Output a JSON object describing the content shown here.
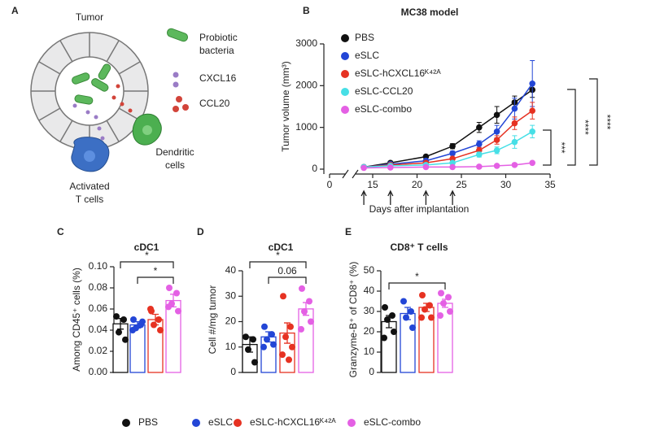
{
  "panels": [
    "A",
    "B",
    "C",
    "D",
    "E"
  ],
  "diagram": {
    "title": "Tumor",
    "legend": [
      [
        "Probiotic",
        "bacteria"
      ],
      [
        "CXCL16"
      ],
      [
        "CCL20"
      ]
    ],
    "cells": [
      [
        "Activated",
        "T cells"
      ],
      [
        "Dendritic",
        "cells"
      ]
    ]
  },
  "legend": {
    "series": [
      {
        "name": "PBS",
        "color": "#111111"
      },
      {
        "name": "eSLC",
        "color": "#2346d6"
      },
      {
        "name": "eSLC-hCXCL16ᴷ⁴²ᴬ",
        "color": "#e63222"
      },
      {
        "name": "eSLC-combo",
        "color": "#e460e4"
      }
    ]
  },
  "chart_data": [
    {
      "type": "line",
      "title": "MC38 model",
      "xlabel": "Days after implantation",
      "ylabel": "Tumor volume (mm³)",
      "x": [
        14,
        17,
        21,
        24,
        27,
        29,
        31,
        33
      ],
      "xlim": [
        0,
        35
      ],
      "xticks": [
        0,
        15,
        20,
        25,
        30,
        35
      ],
      "axis_break": [
        2,
        13
      ],
      "ylim": [
        0,
        3000
      ],
      "yticks": [
        0,
        1000,
        2000,
        3000
      ],
      "treatment_days": [
        14,
        17,
        21,
        24
      ],
      "series": [
        {
          "name": "PBS",
          "color": "#111111",
          "values": [
            50,
            150,
            300,
            550,
            1000,
            1300,
            1600,
            1900
          ],
          "errors": [
            10,
            20,
            30,
            60,
            120,
            200,
            150,
            180
          ]
        },
        {
          "name": "eSLC",
          "color": "#2346d6",
          "values": [
            50,
            120,
            200,
            380,
            600,
            900,
            1450,
            2050
          ],
          "errors": [
            10,
            15,
            30,
            50,
            80,
            150,
            250,
            550
          ]
        },
        {
          "name": "eSLC-hCXCL16ᴷ⁴²ᴬ",
          "color": "#e63222",
          "values": [
            50,
            100,
            150,
            250,
            450,
            700,
            1100,
            1400
          ],
          "errors": [
            10,
            15,
            25,
            40,
            70,
            100,
            150,
            200
          ]
        },
        {
          "name": "eSLC-CCL20",
          "color": "#47dfe6",
          "values": [
            50,
            80,
            100,
            150,
            350,
            450,
            650,
            900
          ],
          "errors": [
            10,
            10,
            20,
            30,
            60,
            80,
            150,
            150
          ]
        },
        {
          "name": "eSLC-combo",
          "color": "#e460e4",
          "values": [
            30,
            40,
            50,
            50,
            60,
            80,
            100,
            150
          ],
          "errors": [
            5,
            5,
            10,
            10,
            10,
            15,
            20,
            30
          ]
        }
      ],
      "annotations": [
        "***",
        "****",
        "****"
      ]
    },
    {
      "type": "bar",
      "title": "cDC1",
      "ylabel": "Among CD45⁺ cells (%)",
      "ylim": [
        0,
        0.1
      ],
      "yticks": [
        {
          "value": 0,
          "label": "0.00"
        },
        {
          "value": 0.02,
          "label": "0.02"
        },
        {
          "value": 0.04,
          "label": "0.04"
        },
        {
          "value": 0.06,
          "label": "0.06"
        },
        {
          "value": 0.08,
          "label": "0.08"
        },
        {
          "value": 0.1,
          "label": "0.10"
        }
      ],
      "groups": [
        {
          "color": "#111111",
          "mean": 0.046,
          "error": 0.005,
          "points": [
            0.053,
            0.05,
            0.038,
            0.031
          ]
        },
        {
          "color": "#2346d6",
          "mean": 0.045,
          "error": 0.003,
          "points": [
            0.05,
            0.045,
            0.042,
            0.048,
            0.04
          ]
        },
        {
          "color": "#e63222",
          "mean": 0.05,
          "error": 0.005,
          "points": [
            0.058,
            0.05,
            0.045,
            0.04,
            0.06
          ]
        },
        {
          "color": "#e460e4",
          "mean": 0.068,
          "error": 0.006,
          "points": [
            0.08,
            0.075,
            0.065,
            0.058,
            0.062
          ]
        }
      ],
      "annotations": [
        "*",
        "*"
      ]
    },
    {
      "type": "bar",
      "title": "cDC1",
      "ylabel": "Cell #/mg tumor",
      "ylim": [
        0,
        40
      ],
      "yticks": [
        0,
        10,
        20,
        30,
        40
      ],
      "groups": [
        {
          "color": "#111111",
          "mean": 11,
          "error": 3,
          "points": [
            14,
            13,
            9,
            4
          ]
        },
        {
          "color": "#2346d6",
          "mean": 14,
          "error": 2,
          "points": [
            18,
            15,
            13,
            11,
            10
          ]
        },
        {
          "color": "#e63222",
          "mean": 15.5,
          "error": 4,
          "points": [
            30,
            18,
            14,
            10,
            7,
            5
          ]
        },
        {
          "color": "#e460e4",
          "mean": 25,
          "error": 2.5,
          "points": [
            33,
            28,
            24,
            20,
            17
          ]
        }
      ],
      "annotations": [
        "*",
        "0.06"
      ]
    },
    {
      "type": "bar",
      "title": "CD8⁺ T cells",
      "ylabel": "Granzyme-B⁺ of CD8⁺ (%)",
      "ylim": [
        0,
        50
      ],
      "yticks": [
        0,
        10,
        20,
        30,
        40,
        50
      ],
      "groups": [
        {
          "color": "#111111",
          "mean": 25,
          "error": 3,
          "points": [
            32,
            28,
            26,
            20,
            17
          ]
        },
        {
          "color": "#2346d6",
          "mean": 29,
          "error": 3,
          "points": [
            35,
            30,
            27,
            22
          ]
        },
        {
          "color": "#e63222",
          "mean": 32,
          "error": 2,
          "points": [
            38,
            33,
            31,
            27,
            27
          ]
        },
        {
          "color": "#e460e4",
          "mean": 34,
          "error": 2,
          "points": [
            39,
            37,
            34,
            30,
            28
          ]
        }
      ],
      "annotations": [
        "*"
      ]
    }
  ]
}
